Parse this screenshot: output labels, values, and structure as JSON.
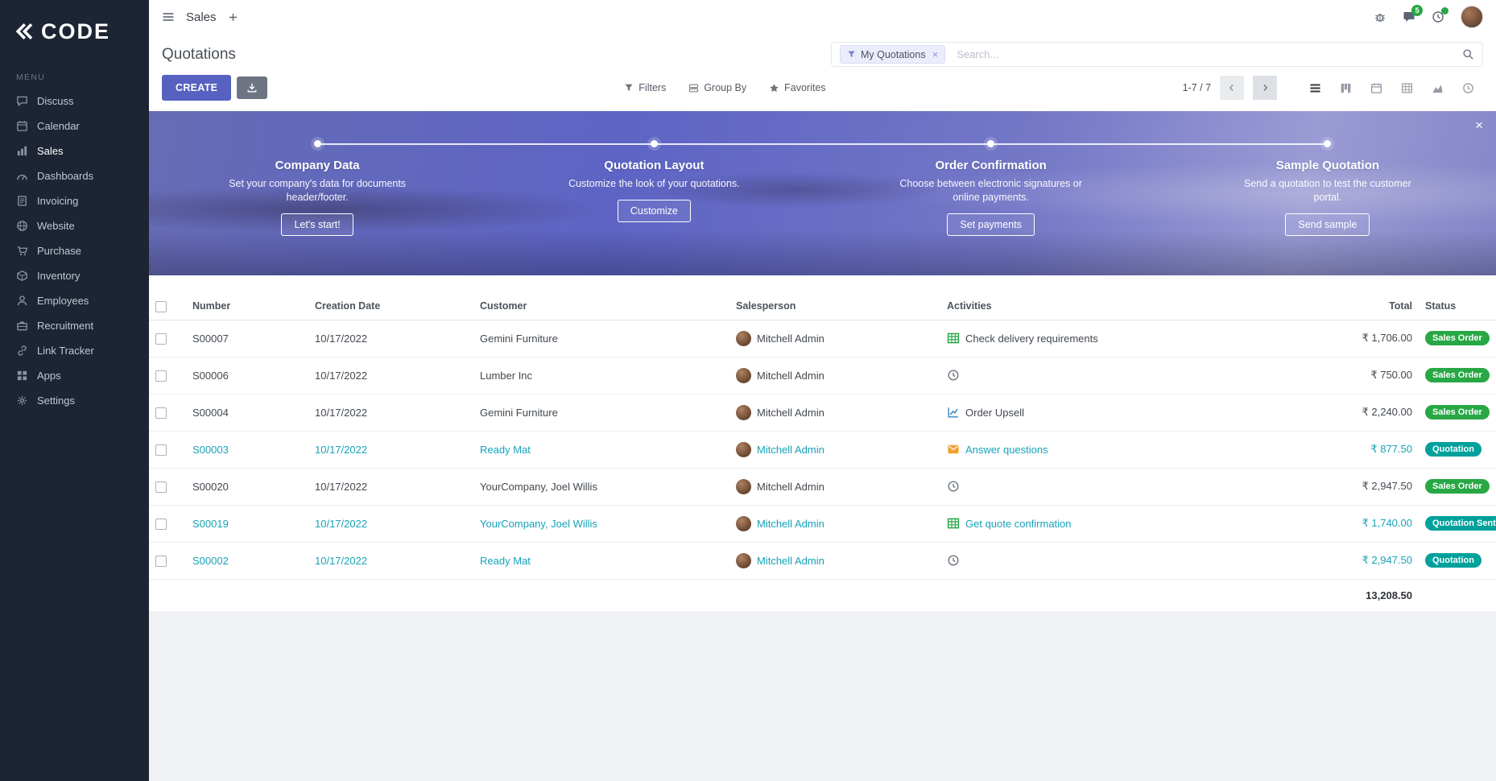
{
  "sidebar": {
    "logo_text": "CODE",
    "menu_label": "MENU",
    "items": [
      {
        "label": "Discuss",
        "icon": "discuss-icon"
      },
      {
        "label": "Calendar",
        "icon": "calendar-icon"
      },
      {
        "label": "Sales",
        "icon": "sales-icon",
        "active": true
      },
      {
        "label": "Dashboards",
        "icon": "dashboards-icon"
      },
      {
        "label": "Invoicing",
        "icon": "invoicing-icon"
      },
      {
        "label": "Website",
        "icon": "website-icon"
      },
      {
        "label": "Purchase",
        "icon": "purchase-icon"
      },
      {
        "label": "Inventory",
        "icon": "inventory-icon"
      },
      {
        "label": "Employees",
        "icon": "employees-icon"
      },
      {
        "label": "Recruitment",
        "icon": "recruitment-icon"
      },
      {
        "label": "Link Tracker",
        "icon": "link-icon"
      },
      {
        "label": "Apps",
        "icon": "apps-icon"
      },
      {
        "label": "Settings",
        "icon": "settings-icon"
      }
    ]
  },
  "topbar": {
    "app_title": "Sales",
    "messages_badge": "5"
  },
  "control_panel": {
    "title": "Quotations",
    "search": {
      "facet": "My Quotations",
      "placeholder": "Search..."
    },
    "create_label": "CREATE",
    "filters_label": "Filters",
    "groupby_label": "Group By",
    "favorites_label": "Favorites",
    "pager": "1-7 / 7",
    "views": [
      {
        "name": "list",
        "active": true
      },
      {
        "name": "kanban"
      },
      {
        "name": "calendar"
      },
      {
        "name": "pivot"
      },
      {
        "name": "graph"
      },
      {
        "name": "activity"
      }
    ]
  },
  "onboarding": {
    "steps": [
      {
        "title": "Company Data",
        "description": "Set your company's data for documents header/footer.",
        "button": "Let's start!"
      },
      {
        "title": "Quotation Layout",
        "description": "Customize the look of your quotations.",
        "button": "Customize"
      },
      {
        "title": "Order Confirmation",
        "description": "Choose between electronic signatures or online payments.",
        "button": "Set payments"
      },
      {
        "title": "Sample Quotation",
        "description": "Send a quotation to test the customer portal.",
        "button": "Send sample"
      }
    ]
  },
  "table": {
    "columns": [
      "Number",
      "Creation Date",
      "Customer",
      "Salesperson",
      "Activities",
      "Total",
      "Status"
    ],
    "rows": [
      {
        "number": "S00007",
        "date": "10/17/2022",
        "customer": "Gemini Furniture",
        "salesperson": "Mitchell Admin",
        "activity": "Check delivery requirements",
        "activity_icon": "spreadsheet-icon",
        "total": "₹ 1,706.00",
        "status": "Sales Order",
        "highlight": false
      },
      {
        "number": "S00006",
        "date": "10/17/2022",
        "customer": "Lumber Inc",
        "salesperson": "Mitchell Admin",
        "activity": "",
        "activity_icon": "clock-icon",
        "total": "₹ 750.00",
        "status": "Sales Order",
        "highlight": false
      },
      {
        "number": "S00004",
        "date": "10/17/2022",
        "customer": "Gemini Furniture",
        "salesperson": "Mitchell Admin",
        "activity": "Order Upsell",
        "activity_icon": "chart-icon",
        "total": "₹ 2,240.00",
        "status": "Sales Order",
        "highlight": false
      },
      {
        "number": "S00003",
        "date": "10/17/2022",
        "customer": "Ready Mat",
        "salesperson": "Mitchell Admin",
        "activity": "Answer questions",
        "activity_icon": "envelope-icon",
        "total": "₹ 877.50",
        "status": "Quotation",
        "highlight": true
      },
      {
        "number": "S00020",
        "date": "10/17/2022",
        "customer": "YourCompany, Joel Willis",
        "salesperson": "Mitchell Admin",
        "activity": "",
        "activity_icon": "clock-icon",
        "total": "₹ 2,947.50",
        "status": "Sales Order",
        "highlight": false
      },
      {
        "number": "S00019",
        "date": "10/17/2022",
        "customer": "YourCompany, Joel Willis",
        "salesperson": "Mitchell Admin",
        "activity": "Get quote confirmation",
        "activity_icon": "spreadsheet-icon",
        "total": "₹ 1,740.00",
        "status": "Quotation Sent",
        "highlight": true
      },
      {
        "number": "S00002",
        "date": "10/17/2022",
        "customer": "Ready Mat",
        "salesperson": "Mitchell Admin",
        "activity": "",
        "activity_icon": "clock-icon",
        "total": "₹ 2,947.50",
        "status": "Quotation",
        "highlight": true
      }
    ],
    "sum_total": "13,208.50"
  }
}
